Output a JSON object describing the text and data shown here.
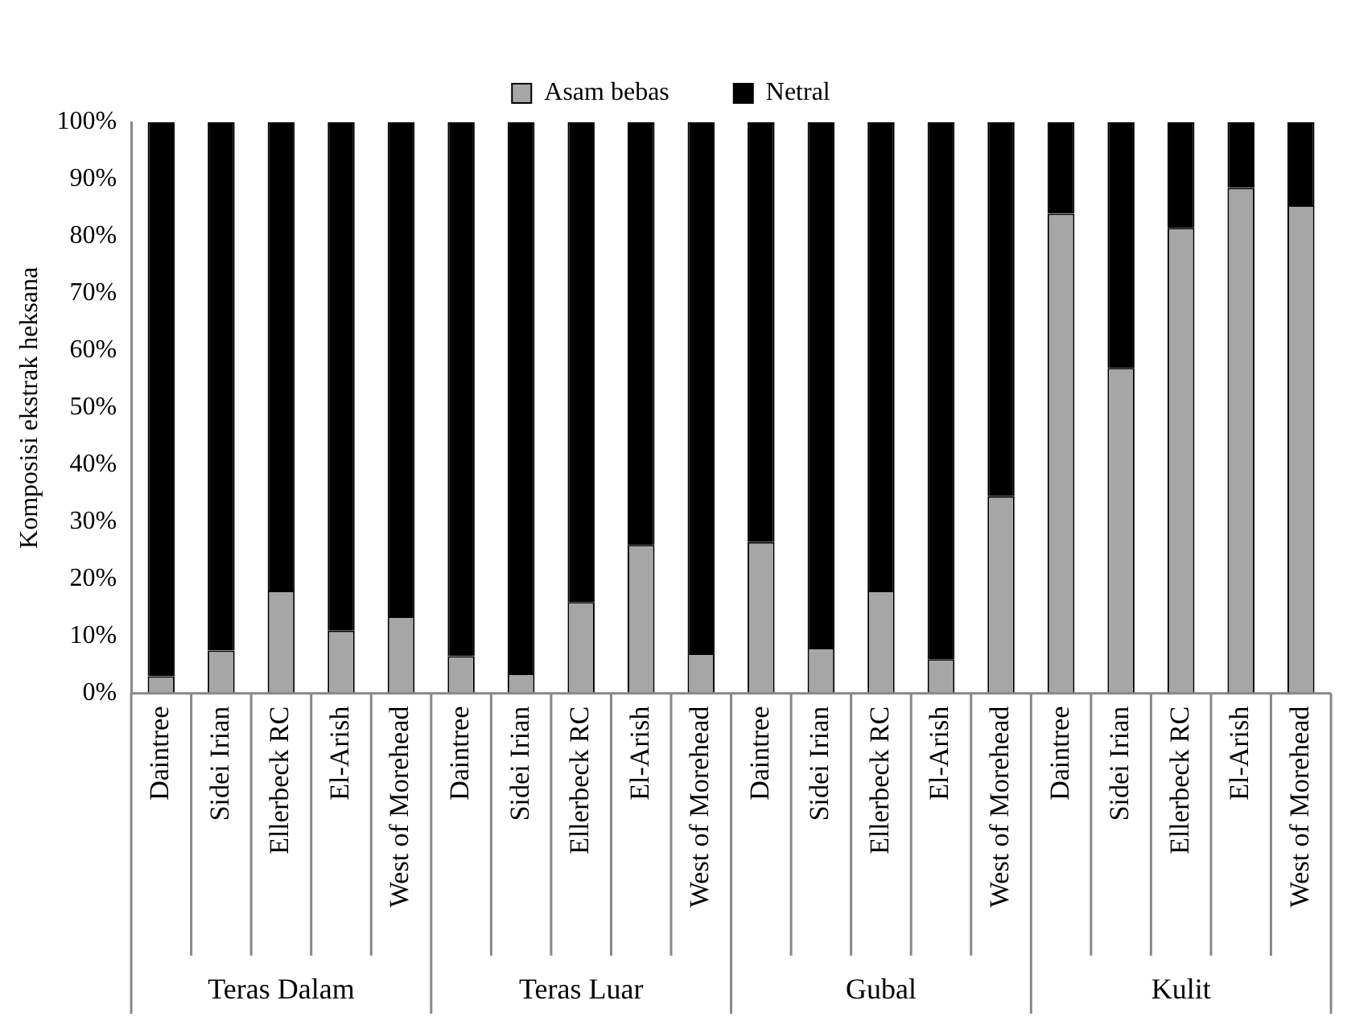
{
  "chart_data": {
    "type": "bar",
    "stacked": true,
    "ylabel": "Komposisi ekstrak heksana",
    "categories": [
      "Daintree",
      "Sidei Irian",
      "Ellerbeck RC",
      "El-Arish",
      "West of Morehead",
      "Daintree",
      "Sidei Irian",
      "Ellerbeck RC",
      "El-Arish",
      "West of Morehead",
      "Daintree",
      "Sidei Irian",
      "Ellerbeck RC",
      "El-Arish",
      "West of Morehead",
      "Daintree",
      "Sidei Irian",
      "Ellerbeck RC",
      "El-Arish",
      "West of Morehead"
    ],
    "annotations": [
      "Teras Dalam",
      "Teras Luar",
      "Gubal",
      "Kulit"
    ],
    "series": [
      {
        "name": "Asam bebas",
        "color": "#a6a6a6",
        "values": [
          3,
          7.5,
          18,
          11,
          13.5,
          6.5,
          3.5,
          16,
          26,
          7,
          26.5,
          8,
          18,
          6,
          34.5,
          84,
          57,
          81.5,
          88.5,
          85.5
        ]
      },
      {
        "name": "Netral",
        "color": "#000000",
        "values": [
          97,
          92.5,
          82,
          89,
          86.5,
          93.5,
          96.5,
          84,
          74,
          93,
          73.5,
          92,
          82,
          94,
          65.5,
          16,
          43,
          18.5,
          11.5,
          14.5
        ]
      }
    ],
    "ylim": [
      0,
      100
    ],
    "yticks": [
      {
        "value": 0,
        "label": "0%"
      },
      {
        "value": 10,
        "label": "10%"
      },
      {
        "value": 20,
        "label": "20%"
      },
      {
        "value": 30,
        "label": "30%"
      },
      {
        "value": 40,
        "label": "40%"
      },
      {
        "value": 50,
        "label": "50%"
      },
      {
        "value": 60,
        "label": "60%"
      },
      {
        "value": 70,
        "label": "70%"
      },
      {
        "value": 80,
        "label": "80%"
      },
      {
        "value": 90,
        "label": "90%"
      },
      {
        "value": 100,
        "label": "100%"
      }
    ],
    "grid": false,
    "legend": "top"
  }
}
